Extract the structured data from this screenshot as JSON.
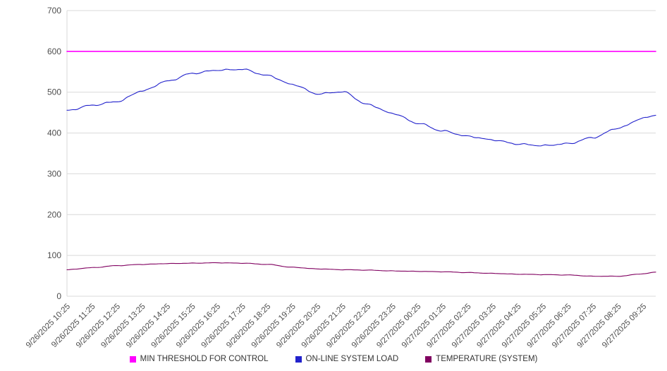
{
  "chart_data": {
    "type": "line",
    "title": "",
    "xlabel": "",
    "ylabel": "",
    "ylim": [
      0,
      700
    ],
    "y_ticks": [
      0,
      100,
      200,
      300,
      400,
      500,
      600,
      700
    ],
    "grid": "horizontal",
    "legend_position": "bottom",
    "x_tick_labels": [
      "9/26/2025 10:25",
      "9/26/2025 11:25",
      "9/26/2025 12:25",
      "9/26/2025 13:25",
      "9/26/2025 14:25",
      "9/26/2025 15:25",
      "9/26/2025 16:25",
      "9/26/2025 17:25",
      "9/26/2025 18:25",
      "9/26/2025 19:25",
      "9/26/2025 20:25",
      "9/26/2025 21:25",
      "9/26/2025 22:25",
      "9/26/2025 23:25",
      "9/27/2025 00:25",
      "9/27/2025 01:25",
      "9/27/2025 02:25",
      "9/27/2025 03:25",
      "9/27/2025 04:25",
      "9/27/2025 05:25",
      "9/27/2025 06:25",
      "9/27/2025 07:25",
      "9/27/2025 08:25",
      "9/27/2025 09:25"
    ],
    "x_hours": [
      0,
      1,
      2,
      3,
      4,
      5,
      6,
      7,
      8,
      9,
      10,
      11,
      12,
      13,
      14,
      15,
      16,
      17,
      18,
      19,
      20,
      21,
      22,
      23,
      23.5
    ],
    "series": [
      {
        "name": "MIN THRESHOLD FOR CONTROL",
        "color": "#ff00ff",
        "values": [
          600,
          600,
          600,
          600,
          600,
          600,
          600,
          600,
          600,
          600,
          600,
          600,
          600,
          600,
          600,
          600,
          600,
          600,
          600,
          600,
          600,
          600,
          600,
          600,
          600
        ]
      },
      {
        "name": "ON-LINE SYSTEM LOAD",
        "color": "#2222cc",
        "values": [
          455,
          468,
          477,
          503,
          527,
          546,
          554,
          556,
          541,
          519,
          496,
          501,
          470,
          448,
          424,
          405,
          392,
          383,
          373,
          369,
          374,
          389,
          412,
          436,
          444
        ]
      },
      {
        "name": "TEMPERATURE (SYSTEM)",
        "color": "#800060",
        "values": [
          65,
          70,
          75,
          78,
          80,
          81,
          82,
          81,
          78,
          71,
          67,
          65,
          64,
          62,
          61,
          60,
          58,
          56,
          54,
          53,
          52,
          49,
          49,
          55,
          59
        ]
      }
    ]
  }
}
